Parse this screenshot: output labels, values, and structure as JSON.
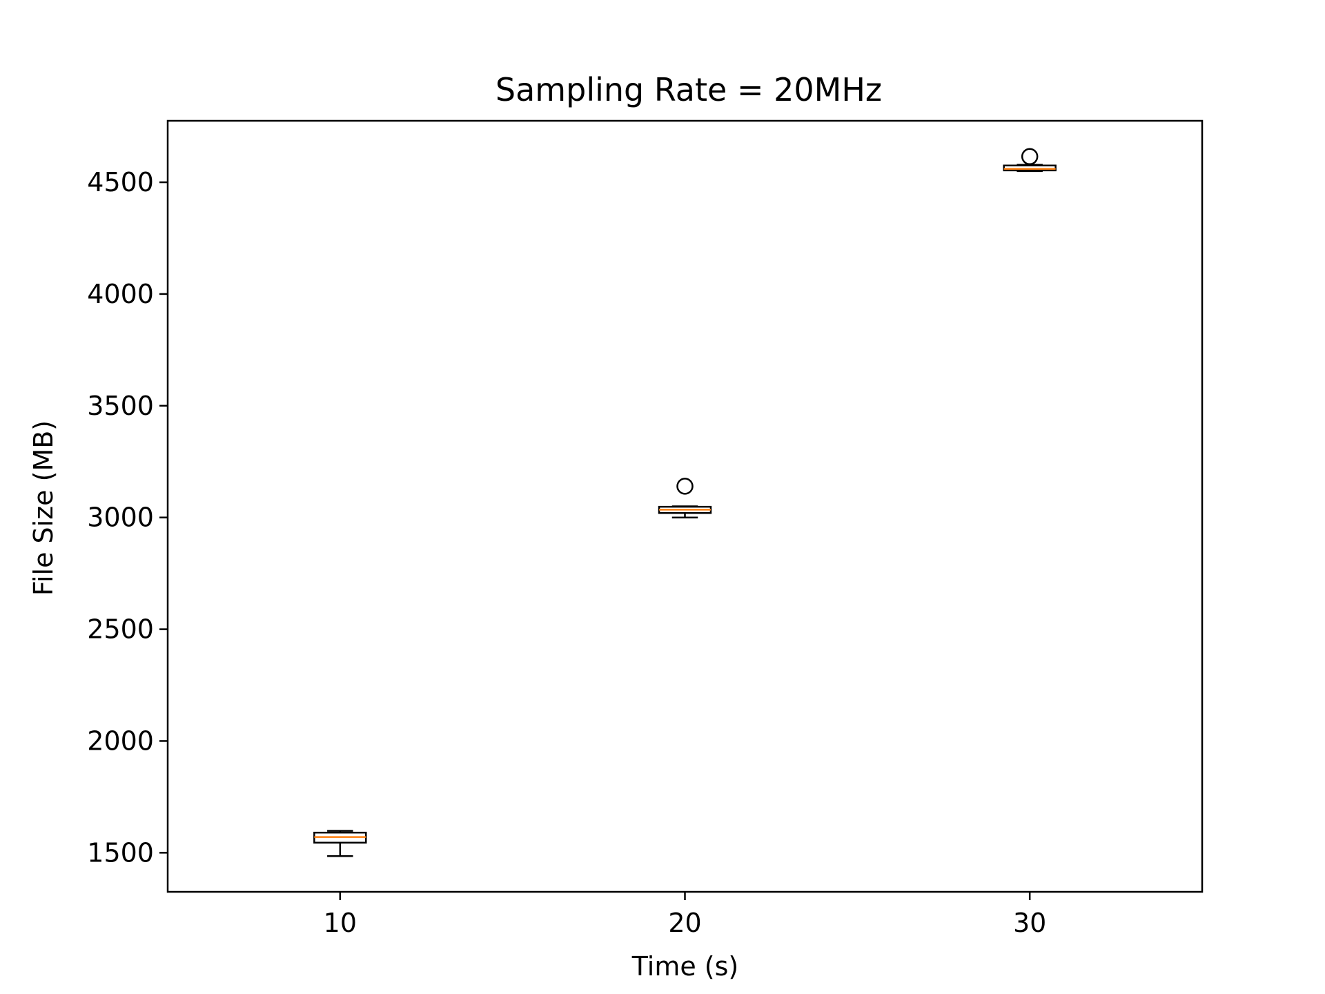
{
  "chart_data": {
    "type": "boxplot",
    "title": "Sampling Rate = 20MHz",
    "xlabel": "Time (s)",
    "ylabel": "File Size (MB)",
    "xlim": [
      5,
      35
    ],
    "ylim": [
      1325,
      4775
    ],
    "xticks": [
      "10",
      "20",
      "30"
    ],
    "yticks": [
      "1500",
      "2000",
      "2500",
      "3000",
      "3500",
      "4000",
      "4500"
    ],
    "grid": false,
    "colors": {
      "box": "#000000",
      "median": "#ff7f0e",
      "fill": "#ffffff"
    },
    "boxes": [
      {
        "x": 10,
        "whisker_low": 1485,
        "q1": 1545,
        "median": 1570,
        "q3": 1590,
        "whisker_high": 1598,
        "outliers": []
      },
      {
        "x": 20,
        "whisker_low": 3000,
        "q1": 3020,
        "median": 3035,
        "q3": 3048,
        "whisker_high": 3050,
        "outliers": [
          3140
        ]
      },
      {
        "x": 30,
        "whisker_low": 4550,
        "q1": 4553,
        "median": 4560,
        "q3": 4575,
        "whisker_high": 4578,
        "outliers": [
          4615
        ]
      }
    ]
  }
}
